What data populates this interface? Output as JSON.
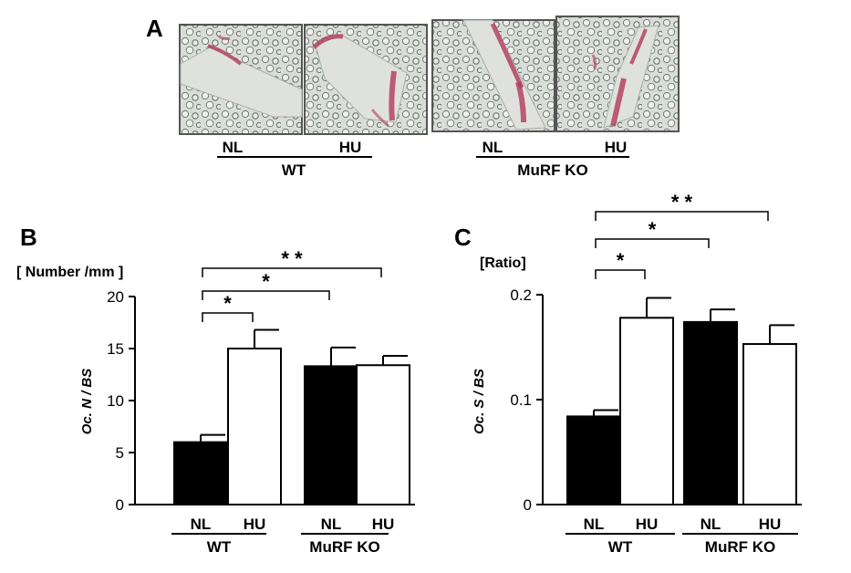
{
  "panels": {
    "A": {
      "label": "A",
      "micrographs": [
        "WT NL",
        "WT HU",
        "MuRF KO NL",
        "MuRF KO HU"
      ],
      "cond_labels": [
        "NL",
        "HU",
        "NL",
        "HU"
      ],
      "group_labels": [
        "WT",
        "MuRF KO"
      ]
    },
    "B": {
      "label": "B"
    },
    "C": {
      "label": "C"
    }
  },
  "chart_data": [
    {
      "type": "bar",
      "panel": "B",
      "unit_label": "[ Number /mm ]",
      "ylabel": "Oc. N / BS",
      "ylim": [
        0,
        20
      ],
      "yticks": [
        "0",
        "5",
        "10",
        "15",
        "20"
      ],
      "categories": [
        "NL",
        "HU",
        "NL",
        "HU"
      ],
      "groups": [
        "WT",
        "MuRF KO"
      ],
      "values": [
        6.0,
        15.0,
        13.3,
        13.4
      ],
      "errors": [
        0.7,
        1.8,
        1.8,
        0.9
      ],
      "fill_colors": [
        "#000000",
        "#ffffff",
        "#000000",
        "#ffffff"
      ],
      "significance": [
        {
          "from": 0,
          "to": 1,
          "label": "*"
        },
        {
          "from": 0,
          "to": 2,
          "label": "*"
        },
        {
          "from": 0,
          "to": 3,
          "label": "* *"
        }
      ]
    },
    {
      "type": "bar",
      "panel": "C",
      "unit_label": "[Ratio]",
      "ylabel": "Oc. S / BS",
      "ylim": [
        0,
        0.2
      ],
      "yticks": [
        "0",
        "0.1",
        "0.2"
      ],
      "categories": [
        "NL",
        "HU",
        "NL",
        "HU"
      ],
      "groups": [
        "WT",
        "MuRF KO"
      ],
      "values": [
        0.084,
        0.178,
        0.174,
        0.153
      ],
      "errors": [
        0.006,
        0.019,
        0.012,
        0.018
      ],
      "fill_colors": [
        "#000000",
        "#ffffff",
        "#000000",
        "#ffffff"
      ],
      "significance": [
        {
          "from": 0,
          "to": 1,
          "label": "*"
        },
        {
          "from": 0,
          "to": 2,
          "label": "*"
        },
        {
          "from": 0,
          "to": 3,
          "label": "* *"
        }
      ]
    }
  ]
}
